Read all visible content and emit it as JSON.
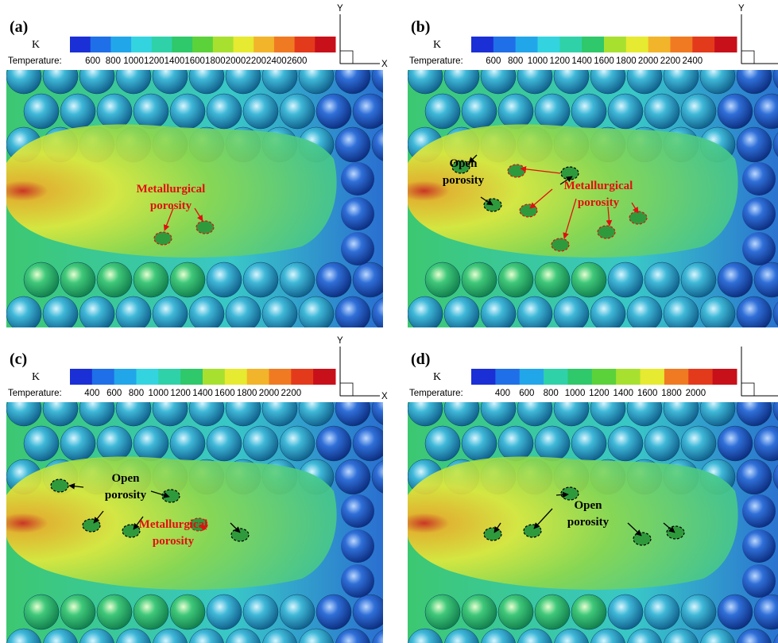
{
  "panels": [
    {
      "label": "(a)",
      "unit": "K",
      "colorbar_title": "Temperature:",
      "axis_y": "Y",
      "axis_x": "X",
      "colorbar_ticks": [
        600,
        800,
        1000,
        1200,
        1400,
        1600,
        1800,
        2000,
        2200,
        2400,
        2600
      ],
      "annotations": [
        {
          "lines": [
            "Metallurgical",
            "porosity"
          ],
          "color": "red"
        }
      ]
    },
    {
      "label": "(b)",
      "unit": "K",
      "colorbar_title": "Temperature:",
      "axis_y": "Y",
      "colorbar_ticks": [
        600,
        800,
        1000,
        1200,
        1400,
        1600,
        1800,
        2000,
        2200,
        2400
      ],
      "annotations": [
        {
          "lines": [
            "Open",
            "porosity"
          ],
          "color": "black"
        },
        {
          "lines": [
            "Metallurgical",
            "porosity"
          ],
          "color": "red"
        }
      ]
    },
    {
      "label": "(c)",
      "unit": "K",
      "colorbar_title": "Temperature:",
      "axis_y": "Y",
      "axis_x": "X",
      "colorbar_ticks": [
        400,
        600,
        800,
        1000,
        1200,
        1400,
        1600,
        1800,
        2000,
        2200
      ],
      "annotations": [
        {
          "lines": [
            "Open",
            "porosity"
          ],
          "color": "black"
        },
        {
          "lines": [
            "Metallurgical",
            "porosity"
          ],
          "color": "red"
        }
      ]
    },
    {
      "label": "(d)",
      "unit": "K",
      "colorbar_title": "Temperature:",
      "colorbar_ticks": [
        400,
        600,
        800,
        1000,
        1200,
        1400,
        1600,
        1800,
        2000
      ],
      "annotations": [
        {
          "lines": [
            "Open",
            "porosity"
          ],
          "color": "black"
        }
      ]
    }
  ]
}
